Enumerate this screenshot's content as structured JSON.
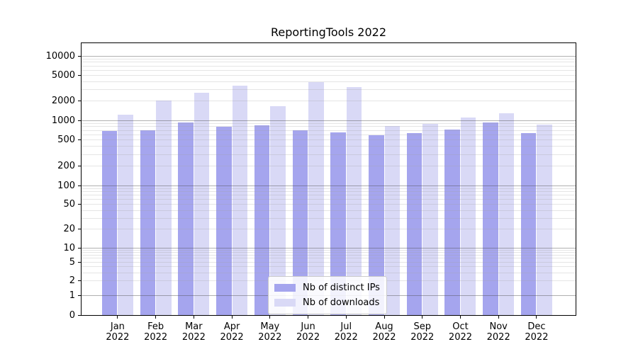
{
  "title": "ReportingTools 2022",
  "chart_data": {
    "type": "bar",
    "title": "ReportingTools 2022",
    "categories": [
      "Jan 2022",
      "Feb 2022",
      "Mar 2022",
      "Apr 2022",
      "May 2022",
      "Jun 2022",
      "Jul 2022",
      "Aug 2022",
      "Sep 2022",
      "Oct 2022",
      "Nov 2022",
      "Dec 2022"
    ],
    "series": [
      {
        "name": "Nb of distinct IPs",
        "color": "#a5a5ee",
        "values": [
          680,
          710,
          930,
          805,
          830,
          700,
          655,
          590,
          640,
          715,
          935,
          635
        ]
      },
      {
        "name": "Nb of downloads",
        "color": "#d9d9f6",
        "values": [
          1210,
          2030,
          2700,
          3480,
          1650,
          3950,
          3270,
          810,
          880,
          1100,
          1290,
          870
        ]
      }
    ],
    "yscale": "symlog",
    "yticks": [
      0,
      1,
      2,
      5,
      10,
      20,
      50,
      100,
      200,
      500,
      1000,
      2000,
      5000,
      10000
    ],
    "ylim": [
      0,
      13000
    ],
    "xlabel": "",
    "ylabel": "",
    "grid": true,
    "legend_position": "lower center"
  }
}
